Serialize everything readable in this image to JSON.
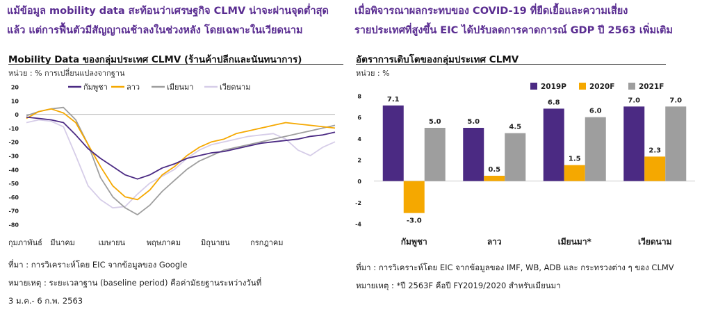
{
  "left": {
    "headline": [
      "แม้ข้อมูล mobility data สะท้อนว่าเศรษฐกิจ CLMV น่าจะผ่านจุดต่ำสุด",
      "แล้ว แต่การฟื้นตัวมีสัญญาณช้าลงในช่วงหลัง โดยเฉพาะในเวียดนาม"
    ],
    "chart_title": "Mobility Data ของกลุ่มประเทศ CLMV (ร้านค้าปลีกและนันทนาการ)",
    "unit": "หน่วย : % การเปลี่ยนแปลงจากฐาน",
    "source": "ที่มา : การวิเคราะห์โดย EIC จากข้อมูลของ Google",
    "remark1": "หมายเหตุ : ระยะเวลาฐาน (baseline period) คือค่ามัธยฐานระหว่างวันที่",
    "remark2": "3 ม.ค.- 6 ก.พ. 2563"
  },
  "right": {
    "headline": [
      "เมื่อพิจารณาผลกระทบของ COVID-19 ที่ยืดเยื้อและความเสี่ยง",
      "รายประเทศที่สูงขึ้น EIC ได้ปรับลดการคาดการณ์ GDP ปี 2563 เพิ่มเติม"
    ],
    "chart_title": "อัตราการเติบโตของกลุ่มประเทศ CLMV",
    "unit": "หน่วย : %",
    "source": "ที่มา : การวิเคราะห์โดย EIC จากข้อมูลของ IMF, WB, ADB และ กระทรวงต่าง ๆ ของ CLMV",
    "remark": "หมายเหตุ : *ปี 2563F คือปี FY2019/2020 สำหรับเมียนมา"
  },
  "chart_data": [
    {
      "type": "line",
      "title": "Mobility Data ของกลุ่มประเทศ CLMV (ร้านค้าปลีกและนันทนาการ)",
      "ylabel": "หน่วย : % การเปลี่ยนแปลงจากฐาน",
      "ylim": [
        -80,
        20
      ],
      "yticks": [
        20,
        10,
        0,
        -10,
        -20,
        -30,
        -40,
        -50,
        -60,
        -70,
        -80
      ],
      "x_tick_labels": [
        "กุมภาพันธ์",
        "มีนาคม",
        "เมษายน",
        "พฤษภาคม",
        "มิถุนายน",
        "กรกฎาคม"
      ],
      "x_range_weeks": [
        0,
        25
      ],
      "grid": false,
      "legend_position": "top",
      "series": [
        {
          "name": "กัมพูชา",
          "color": "#4b2a83",
          "x": [
            0,
            1,
            2,
            3,
            4,
            5,
            6,
            7,
            8,
            9,
            10,
            11,
            12,
            13,
            14,
            15,
            16,
            17,
            18,
            19,
            20,
            21,
            22,
            23,
            24,
            25
          ],
          "y": [
            -2,
            -3,
            -4,
            -6,
            -15,
            -25,
            -32,
            -38,
            -44,
            -47,
            -44,
            -39,
            -36,
            -32,
            -30,
            -28,
            -27,
            -25,
            -23,
            -21,
            -20,
            -19,
            -18,
            -16,
            -15,
            -13
          ]
        },
        {
          "name": "ลาว",
          "color": "#f5a800",
          "x": [
            0,
            1,
            2,
            3,
            4,
            5,
            6,
            7,
            8,
            9,
            10,
            11,
            12,
            13,
            14,
            15,
            16,
            17,
            18,
            19,
            20,
            21,
            22,
            23,
            24,
            25
          ],
          "y": [
            -3,
            2,
            4,
            1,
            -6,
            -22,
            -38,
            -52,
            -60,
            -62,
            -55,
            -44,
            -38,
            -30,
            -24,
            -20,
            -18,
            -14,
            -12,
            -10,
            -8,
            -6,
            -7,
            -8,
            -9,
            -10
          ]
        },
        {
          "name": "เมียนมา",
          "color": "#9e9e9e",
          "x": [
            0,
            1,
            2,
            3,
            4,
            5,
            6,
            7,
            8,
            9,
            10,
            11,
            12,
            13,
            14,
            15,
            16,
            17,
            18,
            19,
            20,
            21,
            22,
            23,
            24,
            25
          ],
          "y": [
            -1,
            2,
            4,
            5,
            -4,
            -22,
            -46,
            -60,
            -68,
            -73,
            -66,
            -56,
            -48,
            -40,
            -34,
            -30,
            -26,
            -24,
            -22,
            -20,
            -18,
            -16,
            -14,
            -12,
            -10,
            -8
          ]
        },
        {
          "name": "เวียดนาม",
          "color": "#d6cde8",
          "x": [
            0,
            1,
            2,
            3,
            4,
            5,
            6,
            7,
            8,
            9,
            10,
            11,
            12,
            13,
            14,
            15,
            16,
            17,
            18,
            19,
            20,
            21,
            22,
            23,
            24,
            25
          ],
          "y": [
            -6,
            -4,
            -5,
            -9,
            -30,
            -52,
            -62,
            -68,
            -67,
            -58,
            -50,
            -45,
            -40,
            -32,
            -26,
            -22,
            -20,
            -18,
            -16,
            -15,
            -14,
            -18,
            -26,
            -30,
            -24,
            -20
          ]
        }
      ]
    },
    {
      "type": "bar",
      "title": "อัตราการเติบโตของกลุ่มประเทศ CLMV",
      "ylabel": "หน่วย : %",
      "ylim": [
        -4,
        8
      ],
      "yticks": [
        8,
        6,
        4,
        2,
        0,
        -2,
        -4
      ],
      "categories": [
        "กัมพูชา",
        "ลาว",
        "เมียนมา*",
        "เวียดนาม"
      ],
      "legend_position": "top-right",
      "series": [
        {
          "name": "2019P",
          "color": "#4b2a83",
          "values": [
            7.1,
            5.0,
            6.8,
            7.0
          ],
          "labels": [
            "7.1",
            "5.0",
            "6.8",
            "7.0"
          ]
        },
        {
          "name": "2020F",
          "color": "#f5a800",
          "values": [
            -3.0,
            0.5,
            1.5,
            2.3
          ],
          "labels": [
            "-3.0",
            "0.5",
            "1.5",
            "2.3"
          ]
        },
        {
          "name": "2021F",
          "color": "#9e9e9e",
          "values": [
            5.0,
            4.5,
            6.0,
            7.0
          ],
          "labels": [
            "5.0",
            "4.5",
            "6.0",
            "7.0"
          ]
        }
      ]
    }
  ]
}
